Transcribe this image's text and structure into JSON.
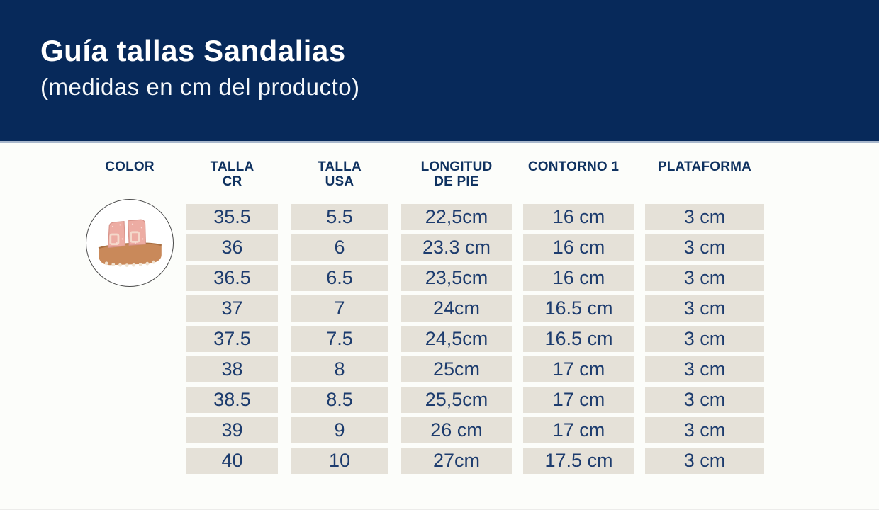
{
  "header": {
    "title": "Guía tallas Sandalias",
    "subtitle": "(medidas en cm del producto)"
  },
  "colors": {
    "banner_bg": "#07295a",
    "banner_divider": "#a9b8cc",
    "cell_bg": "#e5e1d8",
    "text_navy": "#1d3c6e",
    "header_text_navy": "#0f3260",
    "page_bg": "#fcfdfa",
    "sandal_strap_pink": "#edaca3",
    "sandal_sole_tan": "#c9895a"
  },
  "table": {
    "columns": [
      {
        "line1": "COLOR",
        "line2": ""
      },
      {
        "line1": "TALLA",
        "line2": "CR"
      },
      {
        "line1": "TALLA",
        "line2": "USA"
      },
      {
        "line1": "LONGITUD",
        "line2": "DE PIE"
      },
      {
        "line1": "CONTORNO 1",
        "line2": ""
      },
      {
        "line1": "PLATAFORMA",
        "line2": ""
      }
    ],
    "color_item": {
      "icon": "sandal-image",
      "description": "pink glitter two-strap platform sandal"
    },
    "rows": [
      {
        "values": [
          "35.5",
          "5.5",
          "22,5cm",
          "16 cm",
          "3 cm"
        ]
      },
      {
        "values": [
          "36",
          "6",
          "23.3 cm",
          "16 cm",
          "3 cm"
        ]
      },
      {
        "values": [
          "36.5",
          "6.5",
          "23,5cm",
          "16 cm",
          "3 cm"
        ]
      },
      {
        "values": [
          "37",
          "7",
          "24cm",
          "16.5 cm",
          "3 cm"
        ]
      },
      {
        "values": [
          "37.5",
          "7.5",
          "24,5cm",
          "16.5 cm",
          "3 cm"
        ]
      },
      {
        "values": [
          "38",
          "8",
          "25cm",
          "17 cm",
          "3 cm"
        ]
      },
      {
        "values": [
          "38.5",
          "8.5",
          "25,5cm",
          "17 cm",
          "3 cm"
        ]
      },
      {
        "values": [
          "39",
          "9",
          "26 cm",
          "17 cm",
          "3 cm"
        ]
      },
      {
        "values": [
          "40",
          "10",
          "27cm",
          "17.5 cm",
          "3 cm"
        ]
      }
    ]
  }
}
